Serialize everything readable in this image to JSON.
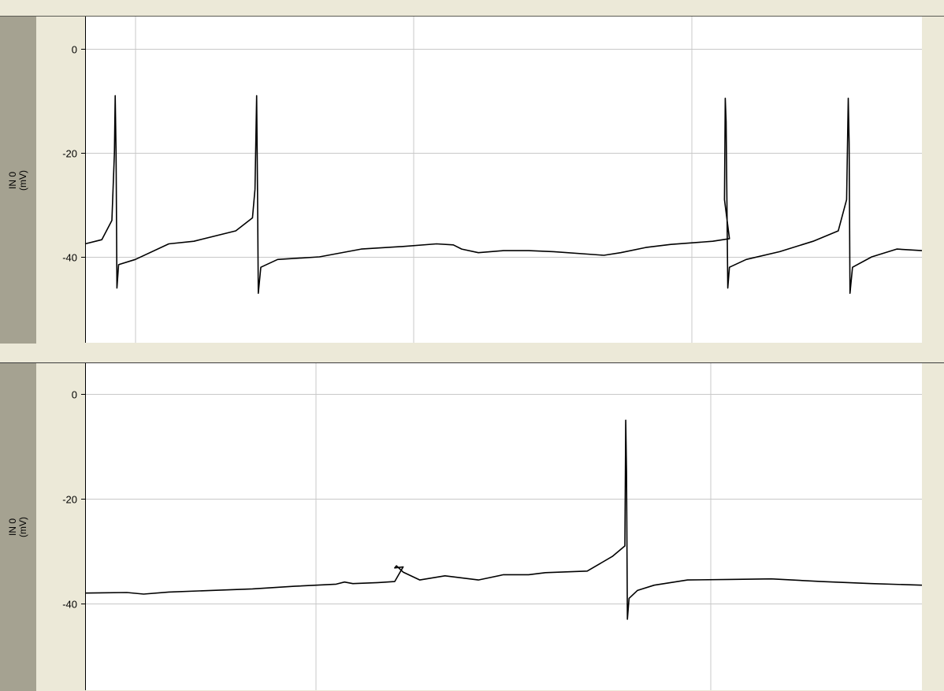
{
  "panels": [
    {
      "channel": "IN 0",
      "unit": "(mV)",
      "y_ticks": [
        "0",
        "-20",
        "-40"
      ]
    },
    {
      "channel": "IN 0",
      "unit": "(mV)",
      "y_ticks": [
        "0",
        "-20",
        "-40"
      ]
    }
  ],
  "chart_data": [
    {
      "type": "line",
      "ylim": [
        -56,
        6
      ],
      "yticks": [
        0,
        -20,
        -40
      ],
      "xlim": [
        0,
        1
      ],
      "grid": true,
      "series": [
        {
          "color": "#000000",
          "x": [
            0,
            0.02,
            0.032,
            0.035,
            0.036,
            0.037,
            0.038,
            0.04,
            0.06,
            0.1,
            0.13,
            0.18,
            0.2,
            0.203,
            0.205,
            0.206,
            0.207,
            0.21,
            0.23,
            0.28,
            0.33,
            0.38,
            0.42,
            0.44,
            0.45,
            0.47,
            0.5,
            0.53,
            0.56,
            0.62,
            0.64,
            0.67,
            0.7,
            0.75,
            0.77,
            0.764,
            0.765,
            0.766,
            0.768,
            0.77,
            0.79,
            0.83,
            0.87,
            0.9,
            0.91,
            0.912,
            0.913,
            0.914,
            0.917,
            0.94,
            0.97,
            1.0
          ],
          "y": [
            -37.5,
            -36.7,
            -33,
            -20,
            -9,
            -20,
            -46,
            -41.5,
            -40.5,
            -37.5,
            -37,
            -35,
            -32.5,
            -27,
            -9,
            -27,
            -47,
            -42,
            -40.5,
            -40,
            -38.5,
            -38,
            -37.5,
            -37.7,
            -38.5,
            -39.2,
            -38.8,
            -38.8,
            -39,
            -39.7,
            -39.2,
            -38.2,
            -37.6,
            -37,
            -36.5,
            -29,
            -9.5,
            -14,
            -46,
            -42,
            -40.5,
            -39,
            -37,
            -35,
            -29,
            -9.5,
            -18,
            -47,
            -42,
            -40,
            -38.5,
            -38.8
          ]
        }
      ]
    },
    {
      "type": "line",
      "ylim": [
        -56,
        6
      ],
      "yticks": [
        0,
        -20,
        -40
      ],
      "xlim": [
        0,
        1
      ],
      "grid": true,
      "series": [
        {
          "color": "#000000",
          "x": [
            0,
            0.05,
            0.07,
            0.1,
            0.15,
            0.2,
            0.25,
            0.3,
            0.31,
            0.32,
            0.35,
            0.37,
            0.38,
            0.37,
            0.372,
            0.38,
            0.4,
            0.43,
            0.47,
            0.5,
            0.53,
            0.55,
            0.6,
            0.63,
            0.645,
            0.646,
            0.647,
            0.648,
            0.65,
            0.66,
            0.68,
            0.72,
            0.77,
            0.82,
            0.88,
            0.94,
            1.0
          ],
          "y": [
            -38,
            -37.9,
            -38.2,
            -37.8,
            -37.5,
            -37.2,
            -36.7,
            -36.3,
            -35.9,
            -36.2,
            -36.0,
            -35.8,
            -33,
            -33.2,
            -32.8,
            -34,
            -35.5,
            -34.7,
            -35.5,
            -34.5,
            -34.5,
            -34.1,
            -33.8,
            -31,
            -29,
            -5,
            -15,
            -43,
            -39,
            -37.5,
            -36.5,
            -35.5,
            -35.4,
            -35.3,
            -35.8,
            -36.2,
            -36.5
          ]
        }
      ]
    }
  ]
}
